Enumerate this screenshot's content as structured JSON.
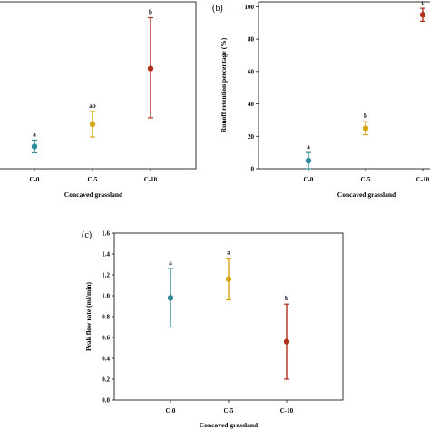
{
  "chart_data": [
    {
      "type": "scatter",
      "panel_label": "",
      "categories": [
        "C-0",
        "C-5",
        "C-10"
      ],
      "xlabel": "Concaved grassland",
      "ylabel": "",
      "yticks": [],
      "series": [
        {
          "points": [
            {
              "category": "C-0",
              "mean": 0.14,
              "lower": 0.1,
              "upper": 0.18,
              "significance": "a",
              "color": "#2e8b9a"
            },
            {
              "category": "C-5",
              "mean": 0.28,
              "lower": 0.2,
              "upper": 0.36,
              "significance": "ab",
              "color": "#d9a514"
            },
            {
              "category": "C-10",
              "mean": 0.63,
              "lower": 0.32,
              "upper": 0.95,
              "significance": "b",
              "color": "#b0311c"
            }
          ]
        }
      ],
      "ylim": [
        0,
        1.05
      ],
      "grid": false
    },
    {
      "type": "scatter",
      "panel_label": "(b)",
      "categories": [
        "C-0",
        "C-5",
        "C-10"
      ],
      "xlabel": "Concaved grassland",
      "ylabel": "Runoff retention percentage (%)",
      "yticks": [
        "0",
        "20",
        "40",
        "60",
        "80",
        "100"
      ],
      "series": [
        {
          "points": [
            {
              "category": "C-0",
              "mean": 5,
              "lower": 0,
              "upper": 10,
              "significance": "a",
              "color": "#2e8b9a"
            },
            {
              "category": "C-5",
              "mean": 25,
              "lower": 21,
              "upper": 29,
              "significance": "b",
              "color": "#d9a514"
            },
            {
              "category": "C-10",
              "mean": 95,
              "lower": 91,
              "upper": 99,
              "significance": "c",
              "color": "#b0311c"
            }
          ]
        }
      ],
      "ylim": [
        0,
        103
      ],
      "grid": false
    },
    {
      "type": "scatter",
      "panel_label": "(c)",
      "categories": [
        "C-0",
        "C-5",
        "C-10"
      ],
      "xlabel": "Concaved grassland",
      "ylabel": "Peak flow rate (ml/min)",
      "yticks": [
        "0.0",
        "0.2",
        "0.4",
        "0.6",
        "0.8",
        "1.0",
        "1.2",
        "1.4",
        "1.6"
      ],
      "series": [
        {
          "points": [
            {
              "category": "C-0",
              "mean": 0.98,
              "lower": 0.7,
              "upper": 1.26,
              "significance": "a",
              "color": "#2e8b9a"
            },
            {
              "category": "C-5",
              "mean": 1.16,
              "lower": 0.96,
              "upper": 1.36,
              "significance": "a",
              "color": "#d9a514"
            },
            {
              "category": "C-10",
              "mean": 0.56,
              "lower": 0.2,
              "upper": 0.92,
              "significance": "b",
              "color": "#b0311c"
            }
          ]
        }
      ],
      "ylim": [
        0,
        1.6
      ],
      "grid": false
    }
  ]
}
